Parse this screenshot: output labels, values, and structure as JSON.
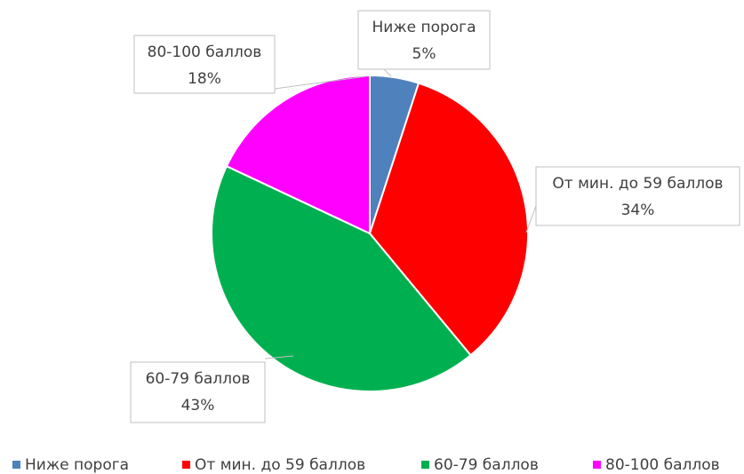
{
  "chart_data": {
    "type": "pie",
    "categories": [
      "Ниже порога",
      "От мин. до 59 баллов",
      "60-79 баллов",
      "80-100 баллов"
    ],
    "values": [
      5,
      34,
      43,
      18
    ],
    "value_labels": [
      "5%",
      "34%",
      "43%",
      "18%"
    ],
    "colors": [
      "#4f81bd",
      "#ff0000",
      "#00b050",
      "#ff00ff"
    ],
    "legend": "bottom"
  }
}
